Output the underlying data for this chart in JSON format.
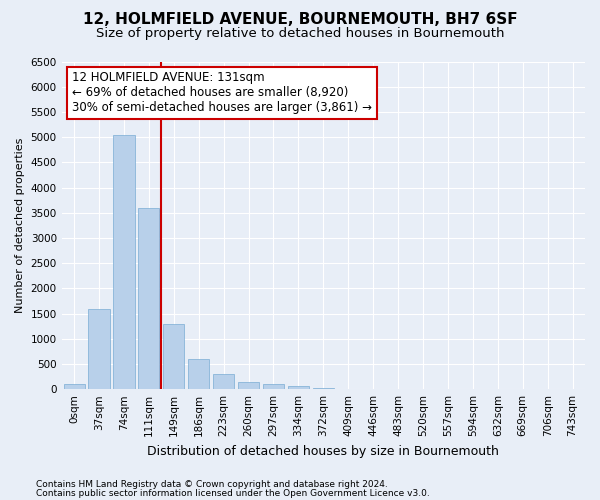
{
  "title": "12, HOLMFIELD AVENUE, BOURNEMOUTH, BH7 6SF",
  "subtitle": "Size of property relative to detached houses in Bournemouth",
  "xlabel": "Distribution of detached houses by size in Bournemouth",
  "ylabel": "Number of detached properties",
  "footer1": "Contains HM Land Registry data © Crown copyright and database right 2024.",
  "footer2": "Contains public sector information licensed under the Open Government Licence v3.0.",
  "categories": [
    "0sqm",
    "37sqm",
    "74sqm",
    "111sqm",
    "149sqm",
    "186sqm",
    "223sqm",
    "260sqm",
    "297sqm",
    "334sqm",
    "372sqm",
    "409sqm",
    "446sqm",
    "483sqm",
    "520sqm",
    "557sqm",
    "594sqm",
    "632sqm",
    "669sqm",
    "706sqm",
    "743sqm"
  ],
  "values": [
    100,
    1600,
    5050,
    3600,
    1300,
    600,
    300,
    150,
    100,
    70,
    30,
    10,
    5,
    0,
    0,
    0,
    0,
    0,
    0,
    0,
    0
  ],
  "bar_color": "#b8d0ea",
  "bar_edge_color": "#7aadd4",
  "vline_x": 3,
  "vline_color": "#cc0000",
  "ylim": [
    0,
    6500
  ],
  "yticks": [
    0,
    500,
    1000,
    1500,
    2000,
    2500,
    3000,
    3500,
    4000,
    4500,
    5000,
    5500,
    6000,
    6500
  ],
  "annotation_title": "12 HOLMFIELD AVENUE: 131sqm",
  "annotation_line1": "← 69% of detached houses are smaller (8,920)",
  "annotation_line2": "30% of semi-detached houses are larger (3,861) →",
  "annotation_box_color": "#cc0000",
  "bg_color": "#e8eef7",
  "grid_color": "#ffffff",
  "title_fontsize": 11,
  "subtitle_fontsize": 9.5,
  "annotation_fontsize": 8.5,
  "tick_fontsize": 7.5,
  "ylabel_fontsize": 8,
  "xlabel_fontsize": 9
}
